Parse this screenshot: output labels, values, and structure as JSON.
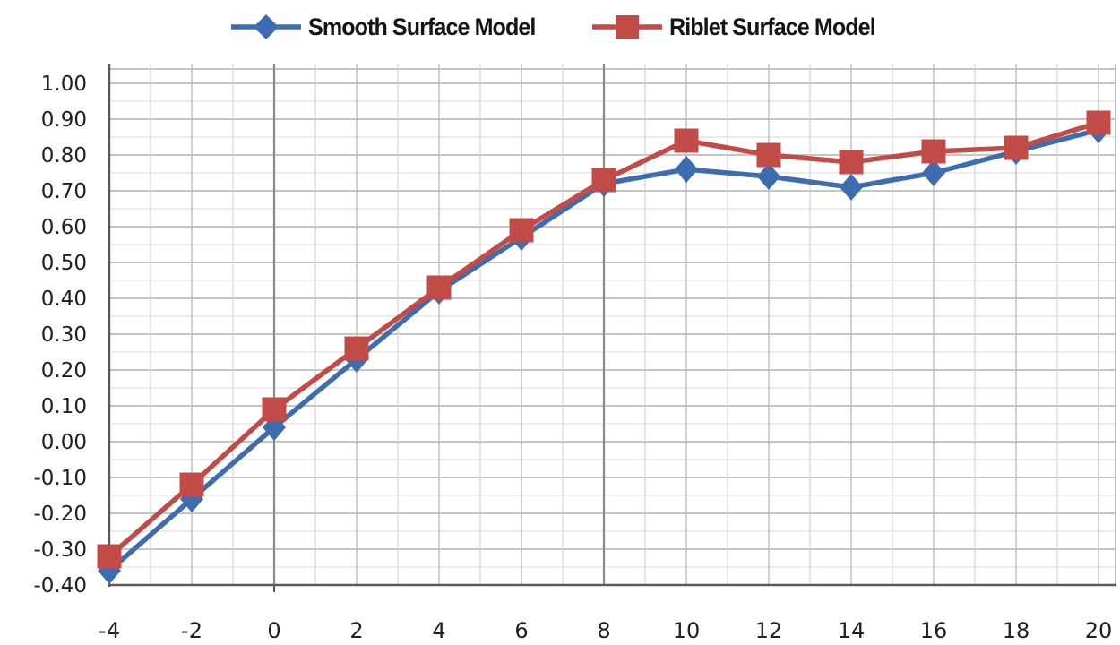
{
  "page": {
    "background": "#ffffff"
  },
  "legend": {
    "items": [
      {
        "marker": "diamond",
        "series_index": 0
      },
      {
        "marker": "square",
        "series_index": 1
      }
    ]
  },
  "chart_data": {
    "type": "line",
    "title": "",
    "xlabel": "",
    "ylabel": "",
    "x": [
      -4,
      -2,
      0,
      2,
      4,
      6,
      8,
      10,
      12,
      14,
      16,
      18,
      20
    ],
    "series": [
      {
        "name": "Smooth Surface Model",
        "color": "#3e6cb0",
        "marker": "diamond",
        "values": [
          -0.36,
          -0.16,
          0.04,
          0.23,
          0.42,
          0.57,
          0.72,
          0.76,
          0.74,
          0.71,
          0.75,
          0.81,
          0.87
        ]
      },
      {
        "name": "Riblet Surface Model",
        "color": "#c24b48",
        "marker": "square",
        "values": [
          -0.32,
          -0.12,
          0.09,
          0.26,
          0.43,
          0.59,
          0.73,
          0.84,
          0.8,
          0.78,
          0.81,
          0.82,
          0.89
        ]
      }
    ],
    "xlim": [
      -4,
      20
    ],
    "ylim": [
      -0.4,
      1.0
    ],
    "x_tick_step": 2,
    "x_minor_step": 1,
    "y_tick_step": 0.1,
    "y_minor_step": 0.05,
    "x_tick_labels": [
      "-4",
      "-2",
      "0",
      "2",
      "4",
      "6",
      "8",
      "10",
      "12",
      "14",
      "16",
      "18",
      "20"
    ],
    "y_tick_labels": [
      "1.00",
      "0.90",
      "0.80",
      "0.70",
      "0.60",
      "0.50",
      "0.40",
      "0.30",
      "0.20",
      "0.10",
      "0.00",
      "-0.10",
      "-0.20",
      "-0.30",
      "-0.40"
    ],
    "grid": true,
    "emphasized_vertical_gridlines": [
      0,
      8
    ],
    "legend_position": "top",
    "colors": {
      "minor_grid": "#d7d7d7",
      "major_grid": "#b2b2b2",
      "emph_grid": "#8a8a8a",
      "axis": "#595959",
      "tick_label": "#1f1f1f",
      "legend_text": "#141414"
    }
  }
}
